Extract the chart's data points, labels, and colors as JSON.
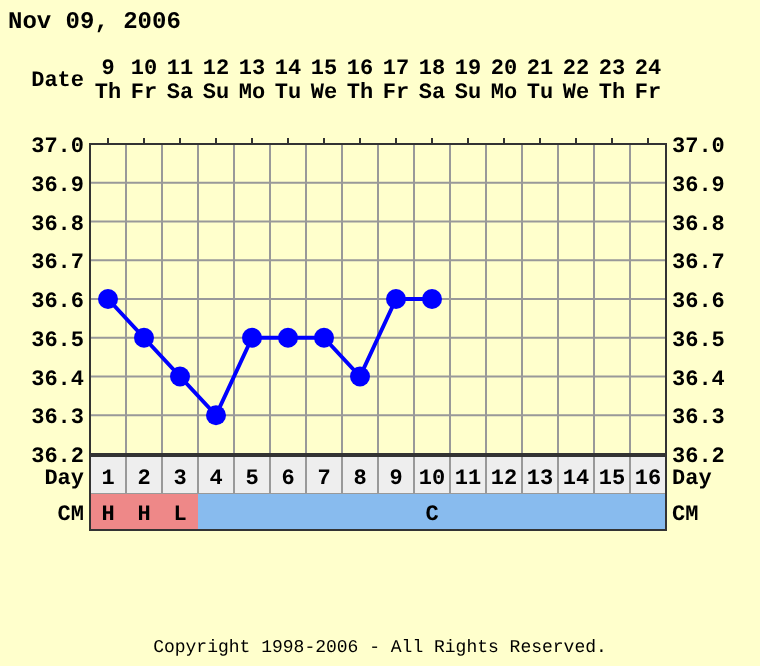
{
  "chart_data": {
    "type": "line",
    "title": "Nov 09, 2006",
    "xlabel": "Date",
    "categories": [
      "9 Th",
      "10 Fr",
      "11 Sa",
      "12 Su",
      "13 Mo",
      "14 Tu",
      "15 We",
      "16 Th",
      "17 Fr",
      "18 Sa",
      "19 Su",
      "20 Mo",
      "21 Tu",
      "22 We",
      "23 Th",
      "24 Fr"
    ],
    "series": [
      {
        "color": "#0000ff",
        "values": [
          36.6,
          36.5,
          36.4,
          36.3,
          36.5,
          36.5,
          36.5,
          36.4,
          36.6,
          36.6,
          null,
          null,
          null,
          null,
          null,
          null
        ]
      }
    ],
    "ylim": [
      36.2,
      37.0
    ],
    "yticks": [
      {
        "value": 36.2,
        "label": "36.2"
      },
      {
        "value": 36.3,
        "label": "36.3"
      },
      {
        "value": 36.4,
        "label": "36.4"
      },
      {
        "value": 36.5,
        "label": "36.5"
      },
      {
        "value": 36.6,
        "label": "36.6"
      },
      {
        "value": 36.7,
        "label": "36.7"
      },
      {
        "value": 36.8,
        "label": "36.8"
      },
      {
        "value": 36.9,
        "label": "36.9"
      },
      {
        "value": 37.0,
        "label": "37.0"
      }
    ],
    "y2lim": [
      36.2,
      37.0
    ],
    "y2ticks": [
      {
        "value": 36.2,
        "label": "36.2"
      },
      {
        "value": 36.3,
        "label": "36.3"
      },
      {
        "value": 36.4,
        "label": "36.4"
      },
      {
        "value": 36.5,
        "label": "36.5"
      },
      {
        "value": 36.6,
        "label": "36.6"
      },
      {
        "value": 36.7,
        "label": "36.7"
      },
      {
        "value": 36.8,
        "label": "36.8"
      },
      {
        "value": 36.9,
        "label": "36.9"
      },
      {
        "value": 37.0,
        "label": "37.0"
      }
    ],
    "x2label": "Day",
    "x2lim": [
      0.5,
      16.5
    ],
    "x2ticks": [
      {
        "value": 1,
        "label": "1 H"
      },
      {
        "value": 2,
        "label": "2 H"
      },
      {
        "value": 3,
        "label": "3 L"
      },
      4,
      5,
      6,
      7,
      8,
      9,
      {
        "value": 10,
        "label": "10 C"
      },
      11,
      12,
      13,
      14,
      15,
      16
    ],
    "grid": true,
    "marker": "circle",
    "line_style": "solid",
    "annotations": [
      "CM",
      "CM",
      "Copyright 1998-2006 - All Rights Reserved."
    ]
  }
}
